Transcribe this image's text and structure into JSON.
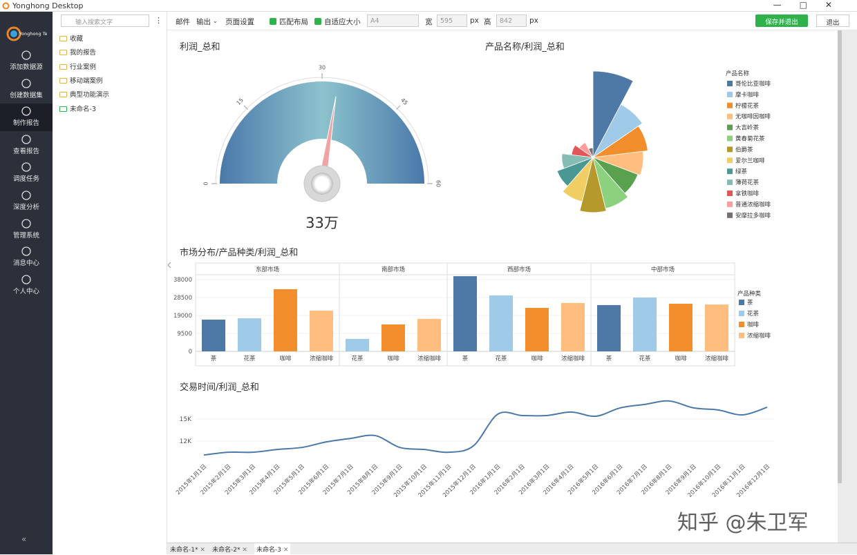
{
  "window": {
    "title": "Yonghong Desktop"
  },
  "sidebar": {
    "logo": "Yonghong Tech",
    "items": [
      "添加数据源",
      "创建数据集",
      "制作报告",
      "查看报告",
      "调度任务",
      "深度分析",
      "管理系统",
      "消息中心",
      "个人中心"
    ],
    "active": 2
  },
  "tree": {
    "search_placeholder": "输入搜索文字",
    "items": [
      "收藏",
      "我的报告",
      "行业案例",
      "移动端案例",
      "典型功能演示",
      "未命名-3"
    ]
  },
  "toolbar": {
    "mail": "邮件",
    "export": "输出",
    "page_setup": "页面设置",
    "fit_layout": "匹配布局",
    "auto_size": "自适应大小",
    "paper": "A4",
    "width_label": "宽",
    "width": 595,
    "unit": "px",
    "height_label": "高",
    "height": 842,
    "save": "保存并退出",
    "exit": "退出"
  },
  "tabs": [
    "未命名-1*",
    "未命名-2*",
    "未命名-3"
  ],
  "watermark": "知乎 @朱卫军",
  "chart_data": [
    {
      "type": "gauge",
      "title": "利润_总和",
      "values": [
        33
      ],
      "value_labels": [
        "33万"
      ],
      "ylim": [
        0,
        60
      ],
      "yticks": [
        0,
        15,
        30,
        45,
        60
      ]
    },
    {
      "type": "rose",
      "title": "产品名称/利润_总和",
      "legend_title": "产品名称",
      "categories": [
        "哥伦比亚咖啡",
        "摩卡咖啡",
        "柠檬花茶",
        "无咖啡因咖啡",
        "大吉岭茶",
        "黄春菊花茶",
        "伯爵茶",
        "爱尔兰咖啡",
        "绿茶",
        "薄荷花茶",
        "拿铁咖啡",
        "普通浓缩咖啡",
        "安摩拉多咖啡"
      ],
      "values": [
        36,
        25,
        23,
        21,
        20,
        22,
        23,
        19,
        16,
        13,
        9,
        7,
        4
      ],
      "colors": [
        "#4e79a7",
        "#a0cbe8",
        "#f28e2b",
        "#ffbe7d",
        "#59a14f",
        "#8cd17d",
        "#b6992d",
        "#f1ce63",
        "#499894",
        "#86bcb6",
        "#e15759",
        "#ff9d9a",
        "#79706e"
      ]
    },
    {
      "type": "bar",
      "title": "市场分布/产品种类/利润_总和",
      "legend_title": "产品种类",
      "series": [
        {
          "name": "茶",
          "color": "#4e79a7"
        },
        {
          "name": "花茶",
          "color": "#a0cbe8"
        },
        {
          "name": "咖啡",
          "color": "#f28e2b"
        },
        {
          "name": "浓缩咖啡",
          "color": "#ffbe7d"
        }
      ],
      "panels": [
        {
          "name": "东部市场",
          "categories": [
            "茶",
            "花茶",
            "咖啡",
            "浓缩咖啡"
          ],
          "values": [
            16800,
            17500,
            32900,
            21550
          ]
        },
        {
          "name": "南部市场",
          "categories": [
            "花茶",
            "咖啡",
            "浓缩咖啡"
          ],
          "values": [
            6600,
            14250,
            17200
          ]
        },
        {
          "name": "西部市场",
          "categories": [
            "茶",
            "花茶",
            "咖啡",
            "浓缩咖啡"
          ],
          "values": [
            39800,
            29600,
            23000,
            25600
          ]
        },
        {
          "name": "中部市场",
          "categories": [
            "茶",
            "花茶",
            "咖啡",
            "浓缩咖啡"
          ],
          "values": [
            24500,
            28500,
            25200,
            24800
          ]
        }
      ],
      "ylim": [
        0,
        40560
      ],
      "yticks": [
        0,
        9500,
        19000,
        28500,
        38000
      ],
      "grid": true
    },
    {
      "type": "line",
      "title": "交易时间/利润_总和",
      "x": [
        "2015年1月1日",
        "2015年2月1日",
        "2015年3月1日",
        "2015年4月1日",
        "2015年5月1日",
        "2015年6月1日",
        "2015年7月1日",
        "2015年8月1日",
        "2015年9月1日",
        "2015年10月1日",
        "2015年11月1日",
        "2015年12月1日",
        "2016年1月1日",
        "2016年2月1日",
        "2016年3月1日",
        "2016年4月1日",
        "2016年5月1日",
        "2016年6月1日",
        "2016年7月1日",
        "2016年8月1日",
        "2016年9月1日",
        "2016年10月1日",
        "2016年11月1日",
        "2016年12月1日"
      ],
      "series": [
        {
          "name": "利润_总和",
          "color": "#4a78a8",
          "values": [
            10125,
            10500,
            10500,
            10875,
            11150,
            11900,
            12375,
            12750,
            11150,
            10875,
            10500,
            11350,
            15650,
            15470,
            15470,
            15940,
            15375,
            16500,
            16970,
            17440,
            16500,
            16220,
            15560,
            16590
          ]
        }
      ],
      "ylim": [
        9300,
        17800
      ],
      "yticks": [
        {
          "value": 12000,
          "label": "12K"
        },
        {
          "value": 15000,
          "label": "15K"
        }
      ],
      "grid": true
    }
  ]
}
